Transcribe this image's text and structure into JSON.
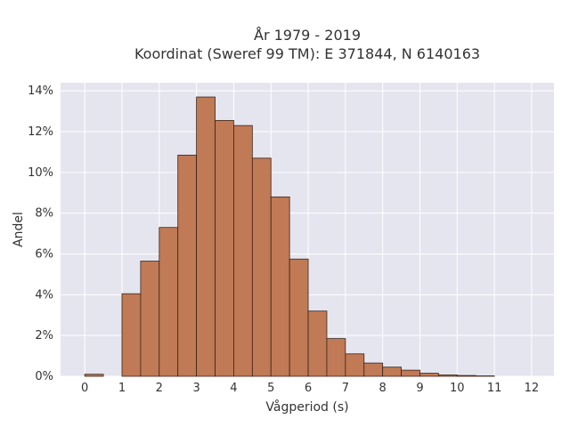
{
  "chart_data": {
    "type": "bar",
    "title_line1": "År 1979 - 2019",
    "title_line2": "Koordinat (Sweref 99 TM): E 371844, N 6140163",
    "xlabel": "Vågperiod (s)",
    "ylabel": "Andel",
    "xlim": [
      -0.65,
      12.6
    ],
    "ylim": [
      0,
      14.4
    ],
    "x_ticks": [
      0,
      1,
      2,
      3,
      4,
      5,
      6,
      7,
      8,
      9,
      10,
      11,
      12
    ],
    "y_ticks": [
      0,
      2,
      4,
      6,
      8,
      10,
      12,
      14
    ],
    "y_tick_labels": [
      "0%",
      "2%",
      "4%",
      "6%",
      "8%",
      "10%",
      "12%",
      "14%"
    ],
    "bin_width": 0.5,
    "bins": [
      {
        "x0": 0.0,
        "x1": 0.5,
        "value": 0.1
      },
      {
        "x0": 1.0,
        "x1": 1.5,
        "value": 4.05
      },
      {
        "x0": 1.5,
        "x1": 2.0,
        "value": 5.65
      },
      {
        "x0": 2.0,
        "x1": 2.5,
        "value": 7.3
      },
      {
        "x0": 2.5,
        "x1": 3.0,
        "value": 10.85
      },
      {
        "x0": 3.0,
        "x1": 3.5,
        "value": 13.7
      },
      {
        "x0": 3.5,
        "x1": 4.0,
        "value": 12.55
      },
      {
        "x0": 4.0,
        "x1": 4.5,
        "value": 12.3
      },
      {
        "x0": 4.5,
        "x1": 5.0,
        "value": 10.7
      },
      {
        "x0": 5.0,
        "x1": 5.5,
        "value": 8.8
      },
      {
        "x0": 5.5,
        "x1": 6.0,
        "value": 5.75
      },
      {
        "x0": 6.0,
        "x1": 6.5,
        "value": 3.2
      },
      {
        "x0": 6.5,
        "x1": 7.0,
        "value": 1.85
      },
      {
        "x0": 7.0,
        "x1": 7.5,
        "value": 1.1
      },
      {
        "x0": 7.5,
        "x1": 8.0,
        "value": 0.65
      },
      {
        "x0": 8.0,
        "x1": 8.5,
        "value": 0.45
      },
      {
        "x0": 8.5,
        "x1": 9.0,
        "value": 0.3
      },
      {
        "x0": 9.0,
        "x1": 9.5,
        "value": 0.15
      },
      {
        "x0": 9.5,
        "x1": 10.0,
        "value": 0.07
      },
      {
        "x0": 10.0,
        "x1": 10.5,
        "value": 0.04
      },
      {
        "x0": 10.5,
        "x1": 11.0,
        "value": 0.02
      }
    ],
    "grid": true,
    "legend": "none",
    "colors": {
      "bar_fill": "#c07a55",
      "bar_edge": "#3a2418",
      "plot_background": "#e5e5ef",
      "grid": "#ffffff"
    }
  }
}
